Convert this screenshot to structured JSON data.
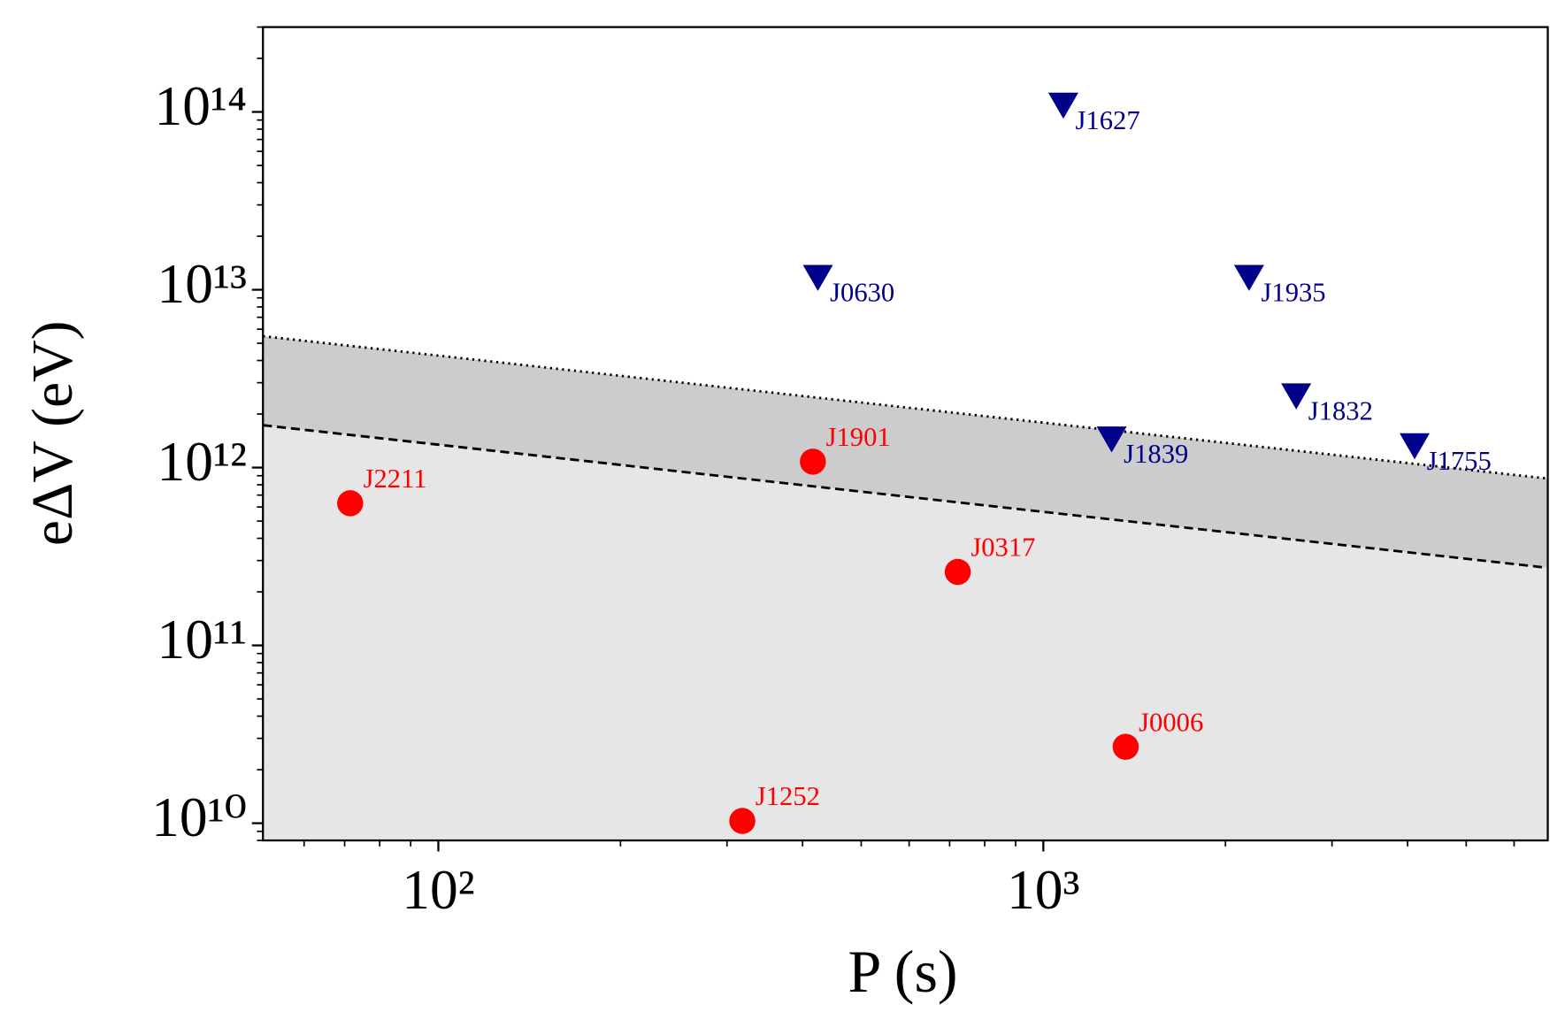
{
  "chart_data": {
    "type": "scatter",
    "xlabel": "P (s)",
    "ylabel": "eΔV (eV)",
    "xscale": "log",
    "yscale": "log",
    "xlim": [
      51.3,
      6820
    ],
    "ylim": [
      8000000000.0,
      300000000000000.0
    ],
    "xticks": [
      {
        "value": 100,
        "label": "10²"
      },
      {
        "value": 1000,
        "label": "10³"
      }
    ],
    "yticks": [
      {
        "value": 10000000000.0,
        "label": "10¹⁰"
      },
      {
        "value": 100000000000.0,
        "label": "10¹¹"
      },
      {
        "value": 1000000000000.0,
        "label": "10¹²"
      },
      {
        "value": 10000000000000.0,
        "label": "10¹³"
      },
      {
        "value": 100000000000000.0,
        "label": "10¹⁴"
      }
    ],
    "series": [
      {
        "marker": "circle",
        "color": "#ff0000",
        "labels": [
          "J2211",
          "J1901",
          "J0317",
          "J0006",
          "J1252"
        ],
        "x": [
          71.5,
          416,
          722,
          1368,
          318
        ],
        "values": [
          630000000000.0,
          1080000000000.0,
          259000000000.0,
          26900000000.0,
          10300000000.0
        ]
      },
      {
        "marker": "triangle-down",
        "color": "#00008b",
        "labels": [
          "J1627",
          "J0630",
          "J1935",
          "J1832",
          "J1839",
          "J1755"
        ],
        "x": [
          1079,
          424,
          2188,
          2618,
          1297,
          4109
        ],
        "values": [
          107000000000000.0,
          11500000000000.0,
          11500000000000.0,
          2480000000000.0,
          1420000000000.0,
          1300000000000.0
        ]
      }
    ],
    "lines": [
      {
        "style": "dotted",
        "color": "#000000",
        "fill": "#cccccc",
        "x": [
          51.3,
          6820
        ],
        "values": [
          5480000000000.0,
          867000000000.0
        ]
      },
      {
        "style": "dashed",
        "color": "#000000",
        "fill": "#e6e6e6",
        "x": [
          51.3,
          6820
        ],
        "values": [
          1730000000000.0,
          273000000000.0
        ]
      }
    ]
  }
}
